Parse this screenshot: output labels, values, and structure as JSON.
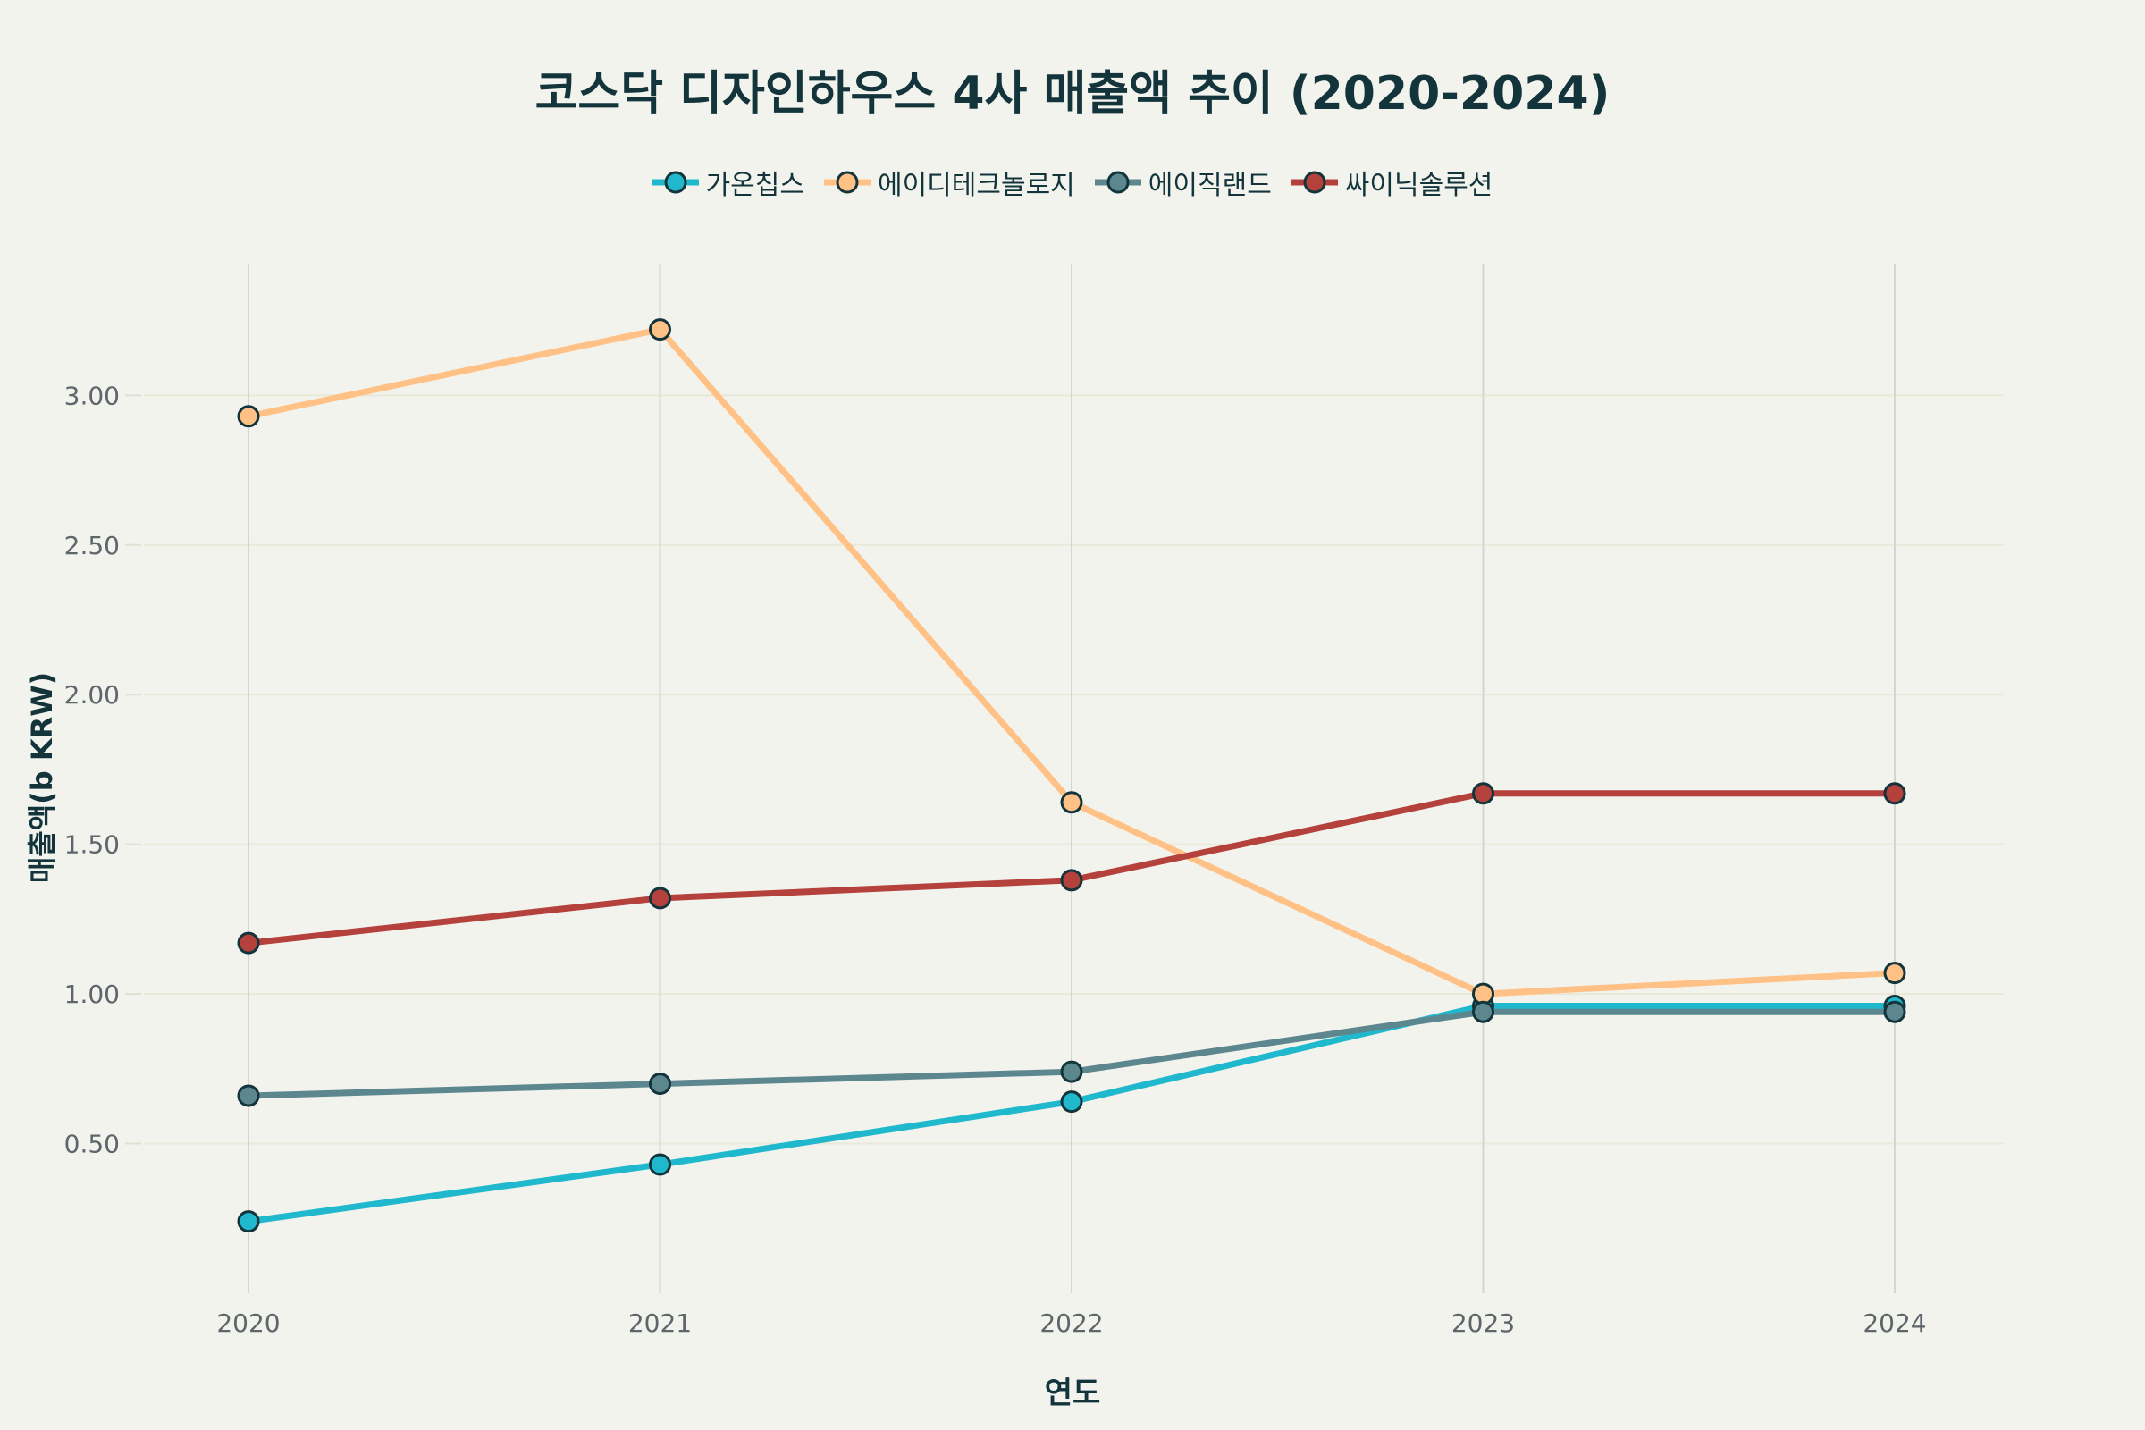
{
  "chart_data": {
    "type": "line",
    "title": "코스닥 디자인하우스 4사 매출액 추이 (2020-2024)",
    "xlabel": "연도",
    "ylabel": "매출액(b KRW)",
    "x": [
      "2020",
      "2021",
      "2022",
      "2023",
      "2024"
    ],
    "ylim": [
      0,
      3.44
    ],
    "yticks": [
      "0.50",
      "1.00",
      "1.50",
      "2.00",
      "2.50",
      "3.00"
    ],
    "grid": true,
    "legend_position": "top-center",
    "marker_outline_color": "#13343b",
    "series": [
      {
        "name": "가온칩스",
        "color": "#1fb8cd",
        "values": [
          0.24,
          0.43,
          0.64,
          0.96,
          0.96
        ]
      },
      {
        "name": "에이디테크놀로지",
        "color": "#ffc185",
        "values": [
          2.93,
          3.22,
          1.64,
          1.0,
          1.07
        ]
      },
      {
        "name": "에이직랜드",
        "color": "#5d878f",
        "values": [
          0.66,
          0.7,
          0.74,
          0.94,
          0.94
        ]
      },
      {
        "name": "싸이닉솔루션",
        "color": "#b4413c",
        "values": [
          1.17,
          1.32,
          1.38,
          1.67,
          1.67
        ]
      }
    ]
  }
}
